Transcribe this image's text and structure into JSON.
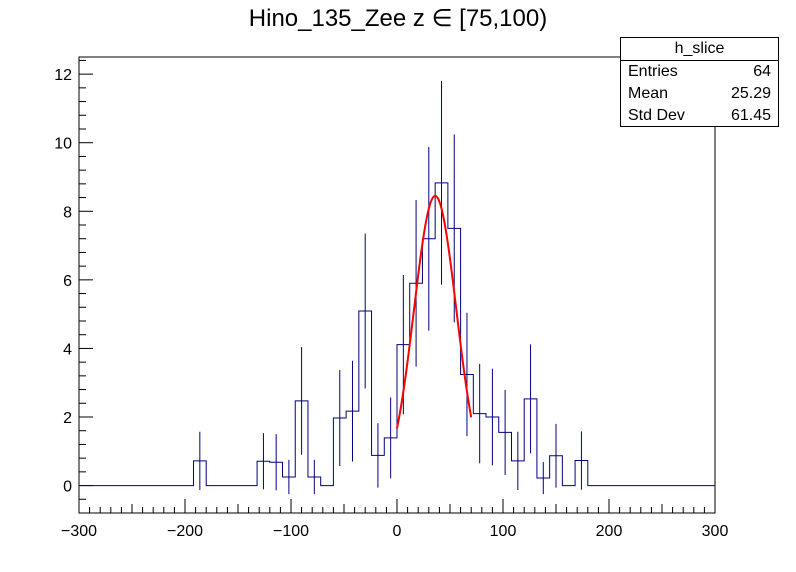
{
  "chart_data": {
    "type": "histogram",
    "title": "Hino_135_Zee z  ∈ [75,100)",
    "xlabel": "",
    "ylabel": "",
    "xlim": [
      -300,
      300
    ],
    "ylim": [
      -0.8,
      12.5
    ],
    "xticks": [
      -300,
      -200,
      -100,
      0,
      100,
      200,
      300
    ],
    "xtick_labels": [
      "−300",
      "−200",
      "−100",
      "0",
      "100",
      "200",
      "300"
    ],
    "yticks": [
      0,
      2,
      4,
      6,
      8,
      10,
      12
    ],
    "ytick_labels": [
      "0",
      "2",
      "4",
      "6",
      "8",
      "10",
      "12"
    ],
    "bin_width": 12,
    "bins": [
      {
        "x": -186,
        "y": 0.72,
        "err": 0.85
      },
      {
        "x": -126,
        "y": 0.71,
        "err": 0.82
      },
      {
        "x": -114,
        "y": 0.68,
        "err": 0.82
      },
      {
        "x": -102,
        "y": 0.25,
        "err": 0.5
      },
      {
        "x": -90,
        "y": 2.47,
        "err": 1.57
      },
      {
        "x": -78,
        "y": 0.25,
        "err": 0.5
      },
      {
        "x": -54,
        "y": 1.97,
        "err": 1.4
      },
      {
        "x": -42,
        "y": 2.17,
        "err": 1.47
      },
      {
        "x": -30,
        "y": 5.09,
        "err": 2.26
      },
      {
        "x": -18,
        "y": 0.88,
        "err": 0.94
      },
      {
        "x": -6,
        "y": 1.39,
        "err": 1.18
      },
      {
        "x": 6,
        "y": 4.11,
        "err": 2.03
      },
      {
        "x": 18,
        "y": 5.9,
        "err": 2.43
      },
      {
        "x": 30,
        "y": 7.2,
        "err": 2.68
      },
      {
        "x": 42,
        "y": 8.83,
        "err": 2.97
      },
      {
        "x": 54,
        "y": 7.5,
        "err": 2.74
      },
      {
        "x": 66,
        "y": 3.24,
        "err": 1.8
      },
      {
        "x": 78,
        "y": 2.1,
        "err": 1.45
      },
      {
        "x": 90,
        "y": 2.0,
        "err": 1.41
      },
      {
        "x": 102,
        "y": 1.55,
        "err": 1.24
      },
      {
        "x": 114,
        "y": 0.72,
        "err": 0.85
      },
      {
        "x": 126,
        "y": 2.53,
        "err": 1.59
      },
      {
        "x": 138,
        "y": 0.22,
        "err": 0.47
      },
      {
        "x": 150,
        "y": 0.87,
        "err": 0.93
      },
      {
        "x": 162,
        "y": 0.0,
        "err": 0.0
      },
      {
        "x": 174,
        "y": 0.73,
        "err": 0.85
      }
    ],
    "fit": {
      "type": "gaussian",
      "amplitude": 8.45,
      "mean": 36,
      "sigma": 20,
      "x_range": [
        0,
        70
      ]
    },
    "colors": {
      "histogram": "#000080",
      "fit": "#ff0000",
      "axes": "#000000"
    },
    "legend_placement": "top-right",
    "grid": false
  },
  "stats": {
    "name": "h_slice",
    "rows": [
      {
        "label": "Entries",
        "value": "64"
      },
      {
        "label": "Mean",
        "value": "25.29"
      },
      {
        "label": "Std Dev",
        "value": "61.45"
      }
    ]
  }
}
